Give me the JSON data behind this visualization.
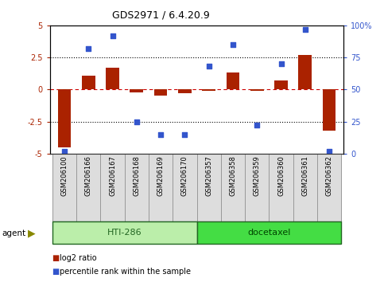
{
  "title": "GDS2971 / 6.4.20.9",
  "samples": [
    "GSM206100",
    "GSM206166",
    "GSM206167",
    "GSM206168",
    "GSM206169",
    "GSM206170",
    "GSM206357",
    "GSM206358",
    "GSM206359",
    "GSM206360",
    "GSM206361",
    "GSM206362"
  ],
  "log2_ratio": [
    -4.5,
    1.1,
    1.7,
    -0.2,
    -0.5,
    -0.3,
    -0.1,
    1.3,
    -0.1,
    0.7,
    2.7,
    -3.2
  ],
  "percentile_rank": [
    2,
    82,
    92,
    25,
    15,
    15,
    68,
    85,
    22,
    70,
    97,
    2
  ],
  "bar_color": "#aa2200",
  "dot_color": "#3355cc",
  "ylim_left": [
    -5,
    5
  ],
  "ylim_right": [
    0,
    100
  ],
  "yticks_left": [
    -5,
    -2.5,
    0,
    2.5,
    5
  ],
  "ytick_labels_left": [
    "-5",
    "-2.5",
    "0",
    "2.5",
    "5"
  ],
  "yticks_right": [
    0,
    25,
    50,
    75,
    100
  ],
  "ytick_labels_right": [
    "0",
    "25",
    "50",
    "75",
    "100%"
  ],
  "group1_label": "HTI-286",
  "group2_label": "docetaxel",
  "group1_indices": [
    0,
    1,
    2,
    3,
    4,
    5
  ],
  "group2_indices": [
    6,
    7,
    8,
    9,
    10,
    11
  ],
  "agent_label": "agent",
  "legend_bar_label": "log2 ratio",
  "legend_dot_label": "percentile rank within the sample",
  "group1_color": "#bbeeaa",
  "group2_color": "#44dd44",
  "box_color": "#dddddd",
  "background_color": "#ffffff",
  "group_border_color": "#226622",
  "sample_box_edge": "#999999"
}
